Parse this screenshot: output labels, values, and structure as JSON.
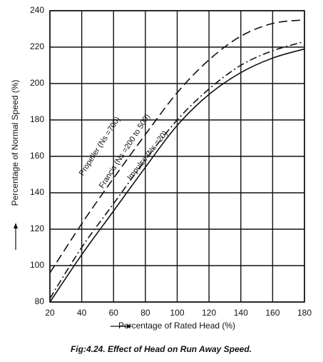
{
  "chart_data": {
    "type": "line",
    "title": "Fig:4.24. Effect of Head on Run Away Speed.",
    "x_label": "Percentage of Rated Head (%)",
    "y_label": "Percentage of Normal Speed (%)",
    "x": [
      20,
      40,
      60,
      80,
      100,
      120,
      140,
      160,
      180
    ],
    "series": [
      {
        "name": "Propeller (Ns =700)",
        "color": "#111111",
        "dash": "dashed",
        "values": [
          96,
          123,
          148,
          172,
          195,
          213,
          226,
          233,
          235
        ]
      },
      {
        "name": "Francis (Ns =200 to 500)",
        "color": "#111111",
        "dash": "dashdot",
        "values": [
          82,
          110,
          134,
          158,
          180,
          197,
          210,
          218,
          223
        ]
      },
      {
        "name": "Impulse (Ns =20)",
        "color": "#111111",
        "dash": "solid",
        "values": [
          80,
          106,
          130,
          154,
          177,
          194,
          206,
          214,
          219
        ]
      }
    ],
    "xlim": [
      20,
      180
    ],
    "xticks": [
      20,
      40,
      60,
      80,
      100,
      120,
      140,
      160,
      180
    ],
    "ylim": [
      80,
      240
    ],
    "yticks": [
      80,
      100,
      120,
      140,
      160,
      180,
      200,
      220,
      240
    ],
    "grid": true
  }
}
